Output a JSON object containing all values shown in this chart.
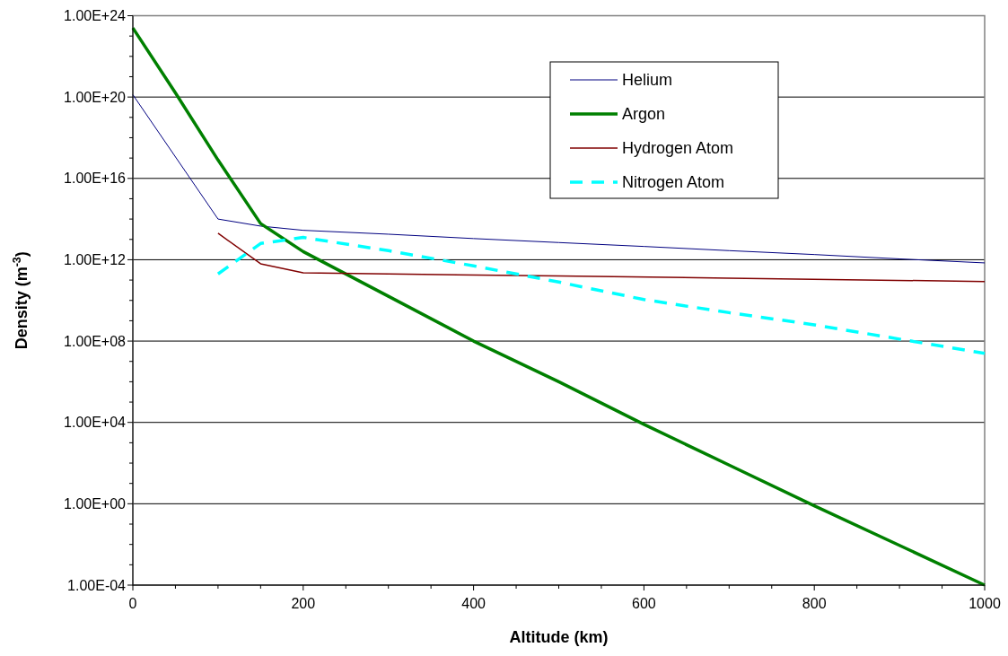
{
  "chart_data": {
    "type": "line",
    "xlabel": "Altitude (km)",
    "ylabel": "Density (m$^{-3}$)",
    "xlim": [
      0,
      1000
    ],
    "ylim": [
      0.0001,
      1e+24
    ],
    "log": "y",
    "grid": "y",
    "legend": "top right",
    "xticks": [
      0,
      {
        "value": 50,
        "label": null
      },
      {
        "value": 100,
        "label": null
      },
      {
        "value": 150,
        "label": null
      },
      200,
      {
        "value": 250,
        "label": null
      },
      {
        "value": 300,
        "label": null
      },
      {
        "value": 350,
        "label": null
      },
      400,
      {
        "value": 450,
        "label": null
      },
      {
        "value": 500,
        "label": null
      },
      {
        "value": 550,
        "label": null
      },
      600,
      {
        "value": 650,
        "label": null
      },
      {
        "value": 700,
        "label": null
      },
      {
        "value": 750,
        "label": null
      },
      800,
      {
        "value": 850,
        "label": null
      },
      {
        "value": 900,
        "label": null
      },
      {
        "value": 950,
        "label": null
      },
      1000
    ],
    "yticks": [
      {
        "value": 0.0001,
        "label": "1.00E-04"
      },
      {
        "value": 0.001,
        "label": null
      },
      {
        "value": 0.01,
        "label": null
      },
      {
        "value": 0.1,
        "label": null
      },
      {
        "value": 1,
        "label": "1.00E+00"
      },
      {
        "value": 10,
        "label": null
      },
      {
        "value": 100,
        "label": null
      },
      {
        "value": 1000,
        "label": null
      },
      {
        "value": 10000.0,
        "label": "1.00E+04"
      },
      {
        "value": 100000.0,
        "label": null
      },
      {
        "value": 1000000.0,
        "label": null
      },
      {
        "value": 10000000.0,
        "label": null
      },
      {
        "value": 100000000.0,
        "label": "1.00E+08"
      },
      {
        "value": 1000000000.0,
        "label": null
      },
      {
        "value": 10000000000.0,
        "label": null
      },
      {
        "value": 100000000000.0,
        "label": null
      },
      {
        "value": 1000000000000.0,
        "label": "1.00E+12"
      },
      {
        "value": 10000000000000.0,
        "label": null
      },
      {
        "value": 100000000000000.0,
        "label": null
      },
      {
        "value": 1000000000000000.0,
        "label": null
      },
      {
        "value": 1e+16,
        "label": "1.00E+16"
      },
      {
        "value": 1e+17,
        "label": null
      },
      {
        "value": 1e+18,
        "label": null
      },
      {
        "value": 1e+19,
        "label": null
      },
      {
        "value": 1e+20,
        "label": "1.00E+20"
      },
      {
        "value": 1e+21,
        "label": null
      },
      {
        "value": 1e+22,
        "label": null
      },
      {
        "value": 1e+23,
        "label": null
      },
      {
        "value": 1e+24,
        "label": "1.00E+24"
      }
    ],
    "series": [
      {
        "name": "Helium",
        "color": "#000080",
        "line_style": "solid",
        "x": [
          0,
          100,
          150,
          200,
          300,
          400,
          500,
          600,
          700,
          800,
          900,
          1000
        ],
        "values": [
          1.3e+20,
          100000000000000.0,
          45000000000000.0,
          28000000000000.0,
          18000000000000.0,
          11000000000000.0,
          7000000000000.0,
          4500000000000.0,
          2800000000000.0,
          1800000000000.0,
          1100000000000.0,
          700000000000.0
        ]
      },
      {
        "name": "Argon",
        "color": "#008000",
        "line_style": "solid",
        "x": [
          0,
          50,
          100,
          150,
          200,
          300,
          400,
          500,
          600,
          700,
          800,
          900,
          1000
        ],
        "values": [
          2.5e+23,
          1.6e+20,
          8e+16,
          60000000000000.0,
          2500000000000.0,
          16000000000.0,
          100000000.0,
          1000000.0,
          8000.0,
          80,
          0.8,
          0.009,
          0.0001
        ]
      },
      {
        "name": "Hydrogen Atom",
        "color": "#800000",
        "line_style": "solid",
        "x": [
          100,
          150,
          200,
          300,
          500,
          700,
          1000
        ],
        "values": [
          20000000000000.0,
          630000000000.0,
          230000000000.0,
          200000000000.0,
          160000000000.0,
          125000000000.0,
          85000000000.0
        ]
      },
      {
        "name": "Nitrogen Atom",
        "color": "#00ffff",
        "line_style": "dashed",
        "x": [
          100,
          150,
          200,
          300,
          400,
          500,
          600,
          700,
          800,
          900,
          1000
        ],
        "values": [
          200000000000.0,
          6300000000000.0,
          12500000000000.0,
          2800000000000.0,
          500000000000.0,
          80000000000.0,
          11000000000.0,
          2500000000.0,
          630000000.0,
          125000000.0,
          25000000.0
        ]
      }
    ]
  }
}
